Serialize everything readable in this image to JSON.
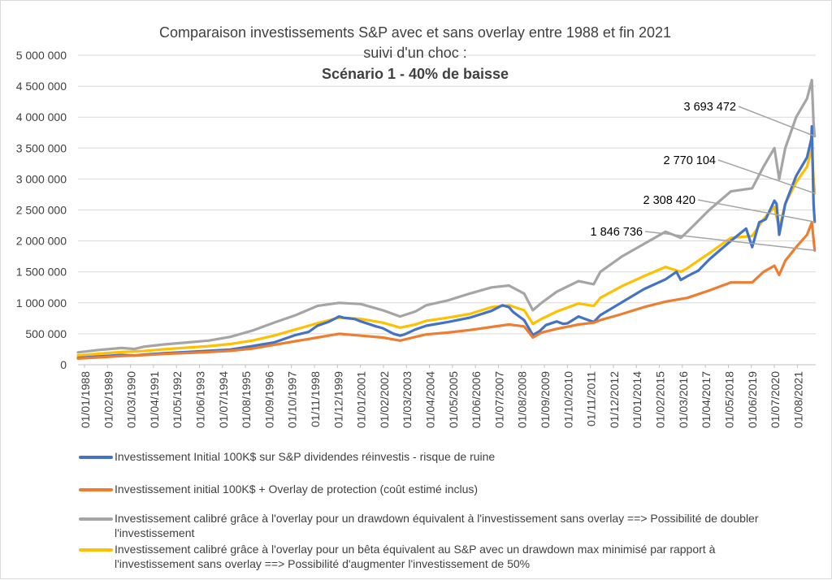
{
  "chart_data": {
    "type": "line",
    "title": "Comparaison investissements S&P avec et sans overlay entre 1988 et fin 2021",
    "subtitle": "suivi d'un choc :",
    "subtitle_bold": "Scénario 1 - 40% de baisse",
    "ylim": [
      0,
      5000000
    ],
    "y_ticks": [
      "0",
      "500 000",
      "1 000 000",
      "1 500 000",
      "2 000 000",
      "2 500 000",
      "3 000 000",
      "3 500 000",
      "4 000 000",
      "4 500 000",
      "5 000 000"
    ],
    "x_ticks": [
      "01/01/1988",
      "01/02/1989",
      "01/03/1990",
      "01/04/1991",
      "01/05/1992",
      "01/06/1993",
      "01/07/1994",
      "01/08/1995",
      "01/09/1996",
      "01/10/1997",
      "01/11/1998",
      "01/12/1999",
      "01/01/2001",
      "01/02/2002",
      "01/03/2003",
      "01/04/2004",
      "01/05/2005",
      "01/06/2006",
      "01/07/2007",
      "01/08/2008",
      "01/09/2009",
      "01/10/2010",
      "01/11/2011",
      "01/12/2012",
      "01/01/2014",
      "01/02/2015",
      "01/03/2016",
      "01/04/2017",
      "01/05/2018",
      "01/06/2019",
      "01/07/2020",
      "01/08/2021"
    ],
    "x_range_years": [
      1988.0,
      2021.9
    ],
    "grid": true,
    "legend_position": "bottom",
    "series": [
      {
        "name": "Investissement Initial 100K$ sur S&P dividendes réinvestis - risque de ruine",
        "color": "#4472C4",
        "x": [
          1988.0,
          1989.0,
          1990.0,
          1990.6,
          1991.0,
          1992.0,
          1993.0,
          1994.0,
          1995.0,
          1996.0,
          1997.0,
          1997.5,
          1998.0,
          1998.6,
          1999.0,
          1999.5,
          2000.0,
          2000.2,
          2000.7,
          2001.0,
          2001.7,
          2002.0,
          2002.5,
          2002.8,
          2003.0,
          2003.5,
          2004.0,
          2005.0,
          2006.0,
          2007.0,
          2007.5,
          2007.8,
          2008.0,
          2008.5,
          2008.9,
          2009.2,
          2009.5,
          2010.0,
          2010.3,
          2010.5,
          2011.0,
          2011.3,
          2011.7,
          2012.0,
          2013.0,
          2014.0,
          2015.0,
          2015.5,
          2015.7,
          2016.0,
          2016.5,
          2017.0,
          2017.5,
          2018.0,
          2018.7,
          2018.98,
          2019.3,
          2019.6,
          2020.0,
          2020.1,
          2020.22,
          2020.5,
          2021.0,
          2021.5,
          2021.7,
          2021.72,
          2021.8,
          2021.85
        ],
        "values": [
          110000,
          135000,
          158000,
          150000,
          163000,
          188000,
          205000,
          225000,
          245000,
          300000,
          360000,
          420000,
          480000,
          530000,
          630000,
          690000,
          780000,
          760000,
          740000,
          700000,
          620000,
          590000,
          500000,
          470000,
          490000,
          570000,
          630000,
          690000,
          760000,
          870000,
          960000,
          930000,
          850000,
          720000,
          480000,
          540000,
          640000,
          700000,
          660000,
          670000,
          780000,
          740000,
          690000,
          800000,
          1010000,
          1220000,
          1380000,
          1500000,
          1370000,
          1430000,
          1520000,
          1700000,
          1850000,
          2000000,
          2200000,
          1900000,
          2300000,
          2350000,
          2650000,
          2600000,
          2100000,
          2600000,
          3050000,
          3350000,
          3650000,
          3850000,
          2600000,
          2308420
        ]
      },
      {
        "name": "Investissement initial 100K$ + Overlay de protection (coût estimé inclus)",
        "color": "#ED7D31",
        "x": [
          1988.0,
          1989.0,
          1990.0,
          1991.0,
          1992.0,
          1993.0,
          1994.0,
          1995.0,
          1996.0,
          1997.0,
          1998.0,
          1999.0,
          2000.0,
          2001.0,
          2002.0,
          2002.8,
          2003.5,
          2004.0,
          2005.0,
          2006.0,
          2007.0,
          2007.8,
          2008.5,
          2008.9,
          2009.3,
          2010.0,
          2011.0,
          2011.7,
          2012.0,
          2013.0,
          2014.0,
          2015.0,
          2016.0,
          2017.0,
          2018.0,
          2018.98,
          2019.5,
          2020.0,
          2020.22,
          2020.5,
          2021.0,
          2021.5,
          2021.72,
          2021.85
        ],
        "values": [
          100000,
          120000,
          140000,
          155000,
          175000,
          190000,
          205000,
          225000,
          260000,
          320000,
          380000,
          440000,
          500000,
          470000,
          440000,
          390000,
          450000,
          490000,
          520000,
          560000,
          610000,
          650000,
          620000,
          440000,
          520000,
          580000,
          650000,
          680000,
          720000,
          820000,
          930000,
          1020000,
          1080000,
          1200000,
          1330000,
          1330000,
          1500000,
          1600000,
          1450000,
          1680000,
          1900000,
          2100000,
          2300000,
          1846736
        ]
      },
      {
        "name": "Investissement calibré grâce à l'overlay pour un drawdown équivalent à l'investissement sans overlay ==> Possibilité de doubler l'investissement",
        "color": "#A5A5A5",
        "x": [
          1988.0,
          1989.0,
          1990.0,
          1990.6,
          1991.0,
          1992.0,
          1993.0,
          1994.0,
          1995.0,
          1996.0,
          1997.0,
          1998.0,
          1999.0,
          2000.0,
          2001.0,
          2002.0,
          2002.8,
          2003.5,
          2004.0,
          2005.0,
          2006.0,
          2007.0,
          2007.8,
          2008.5,
          2008.9,
          2009.3,
          2010.0,
          2011.0,
          2011.7,
          2012.0,
          2013.0,
          2014.0,
          2015.0,
          2015.7,
          2016.0,
          2017.0,
          2018.0,
          2018.98,
          2019.5,
          2020.0,
          2020.22,
          2020.5,
          2021.0,
          2021.5,
          2021.72,
          2021.8,
          2021.85
        ],
        "values": [
          200000,
          240000,
          270000,
          255000,
          290000,
          330000,
          360000,
          390000,
          450000,
          550000,
          680000,
          800000,
          950000,
          1000000,
          980000,
          880000,
          780000,
          860000,
          960000,
          1040000,
          1150000,
          1250000,
          1280000,
          1150000,
          880000,
          1000000,
          1180000,
          1350000,
          1300000,
          1500000,
          1750000,
          1950000,
          2150000,
          2050000,
          2150000,
          2500000,
          2800000,
          2850000,
          3200000,
          3500000,
          3000000,
          3500000,
          4000000,
          4300000,
          4600000,
          3900000,
          3693472
        ]
      },
      {
        "name": "Investissement calibré grâce à l'overlay pour un bêta équivalent au S&P avec un drawdown max minimisé par rapport à l'investissement sans overlay ==> Possibilité d'augmenter l'investissement de 50%",
        "color": "#FFC000",
        "x": [
          1988.0,
          1989.0,
          1990.0,
          1991.0,
          1992.0,
          1993.0,
          1994.0,
          1995.0,
          1996.0,
          1997.0,
          1998.0,
          1999.0,
          2000.0,
          2001.0,
          2002.0,
          2002.8,
          2003.5,
          2004.0,
          2005.0,
          2006.0,
          2007.0,
          2007.8,
          2008.5,
          2008.9,
          2009.3,
          2010.0,
          2011.0,
          2011.7,
          2012.0,
          2013.0,
          2014.0,
          2015.0,
          2015.7,
          2016.0,
          2017.0,
          2018.0,
          2018.98,
          2019.5,
          2020.0,
          2020.22,
          2020.5,
          2021.0,
          2021.5,
          2021.72,
          2021.8,
          2021.85
        ],
        "values": [
          150000,
          180000,
          205000,
          220000,
          250000,
          275000,
          300000,
          335000,
          390000,
          470000,
          570000,
          670000,
          760000,
          740000,
          680000,
          600000,
          650000,
          710000,
          760000,
          820000,
          930000,
          960000,
          880000,
          660000,
          740000,
          860000,
          990000,
          950000,
          1080000,
          1270000,
          1430000,
          1580000,
          1500000,
          1560000,
          1800000,
          2050000,
          2080000,
          2350000,
          2550000,
          2200000,
          2600000,
          2950000,
          3200000,
          3500000,
          3000000,
          2770104
        ]
      }
    ],
    "annotations": [
      {
        "text": "3 693 472",
        "series": 2
      },
      {
        "text": "2 770 104",
        "series": 3
      },
      {
        "text": "2 308 420",
        "series": 0
      },
      {
        "text": "1 846 736",
        "series": 1
      }
    ]
  }
}
